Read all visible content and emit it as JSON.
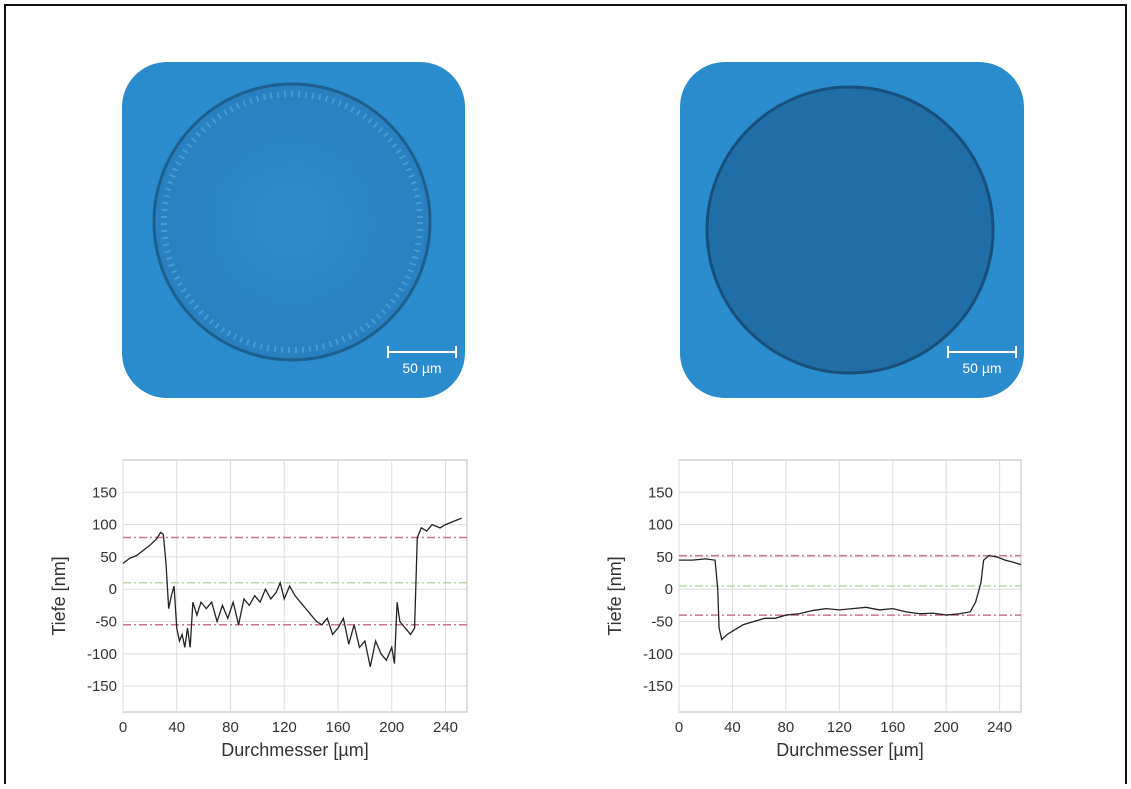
{
  "images": [
    {
      "scale_bar": "50 µm"
    },
    {
      "scale_bar": "50 µm"
    }
  ],
  "chart_data": [
    {
      "type": "line",
      "ylabel": "Tiefe [nm]",
      "xlabel": "Durchmesser [µm]",
      "xlim": [
        0,
        256
      ],
      "ylim": [
        -190,
        200
      ],
      "xticks": [
        0,
        40,
        80,
        120,
        160,
        200,
        240
      ],
      "yticks": [
        -150,
        -100,
        -50,
        0,
        50,
        100,
        150
      ],
      "grid": true,
      "reference_lines": [
        {
          "value": 80,
          "color": "#c9788a"
        },
        {
          "value": 10,
          "color": "#b8d8a8"
        },
        {
          "value": -55,
          "color": "#c9788a"
        }
      ],
      "x": [
        0,
        5,
        10,
        15,
        20,
        25,
        28,
        30,
        32,
        34,
        36,
        38,
        40,
        42,
        44,
        46,
        48,
        50,
        52,
        55,
        58,
        62,
        66,
        70,
        74,
        78,
        82,
        86,
        90,
        94,
        98,
        102,
        106,
        110,
        114,
        117,
        120,
        124,
        128,
        132,
        136,
        140,
        144,
        148,
        152,
        156,
        160,
        164,
        168,
        172,
        176,
        180,
        184,
        188,
        192,
        196,
        200,
        202,
        204,
        206,
        210,
        214,
        217,
        219,
        222,
        226,
        230,
        236,
        240,
        246,
        252
      ],
      "series": [
        {
          "color": "#222222",
          "values": [
            40,
            48,
            52,
            60,
            68,
            78,
            88,
            85,
            40,
            -30,
            -10,
            5,
            -60,
            -80,
            -70,
            -90,
            -60,
            -90,
            -20,
            -40,
            -20,
            -30,
            -20,
            -50,
            -25,
            -45,
            -20,
            -55,
            -15,
            -25,
            -10,
            -20,
            0,
            -15,
            -5,
            10,
            -15,
            5,
            -10,
            -20,
            -30,
            -40,
            -50,
            -55,
            -45,
            -70,
            -60,
            -45,
            -85,
            -55,
            -90,
            -80,
            -120,
            -80,
            -100,
            -110,
            -90,
            -115,
            -20,
            -50,
            -60,
            -70,
            -60,
            80,
            95,
            90,
            100,
            95,
            100,
            105,
            110
          ]
        }
      ]
    },
    {
      "type": "line",
      "ylabel": "Tiefe [nm]",
      "xlabel": "Durchmesser [µm]",
      "xlim": [
        0,
        256
      ],
      "ylim": [
        -190,
        200
      ],
      "xticks": [
        0,
        40,
        80,
        120,
        160,
        200,
        240
      ],
      "yticks": [
        -150,
        -100,
        -50,
        0,
        50,
        100,
        150
      ],
      "grid": true,
      "reference_lines": [
        {
          "value": 52,
          "color": "#c9788a"
        },
        {
          "value": 5,
          "color": "#b8d8a8"
        },
        {
          "value": -40,
          "color": "#c9788a"
        }
      ],
      "x": [
        0,
        10,
        20,
        27,
        29,
        30,
        32,
        36,
        40,
        48,
        56,
        64,
        72,
        80,
        90,
        100,
        110,
        120,
        130,
        140,
        150,
        160,
        170,
        180,
        190,
        200,
        210,
        218,
        222,
        226,
        228,
        232,
        238,
        244,
        250,
        256
      ],
      "series": [
        {
          "color": "#222222",
          "values": [
            45,
            45,
            47,
            45,
            0,
            -60,
            -78,
            -70,
            -65,
            -55,
            -50,
            -45,
            -45,
            -40,
            -38,
            -33,
            -30,
            -32,
            -30,
            -28,
            -32,
            -30,
            -35,
            -38,
            -37,
            -40,
            -38,
            -35,
            -20,
            10,
            45,
            52,
            50,
            45,
            42,
            38
          ]
        }
      ]
    }
  ]
}
